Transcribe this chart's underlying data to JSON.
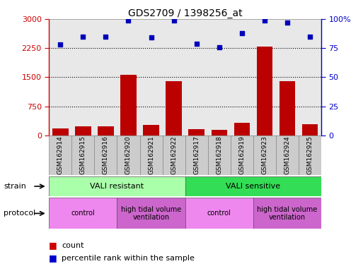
{
  "title": "GDS2709 / 1398256_at",
  "samples": [
    "GSM162914",
    "GSM162915",
    "GSM162916",
    "GSM162920",
    "GSM162921",
    "GSM162922",
    "GSM162917",
    "GSM162918",
    "GSM162919",
    "GSM162923",
    "GSM162924",
    "GSM162925"
  ],
  "counts": [
    175,
    230,
    245,
    1570,
    280,
    1390,
    170,
    140,
    320,
    2290,
    1390,
    295
  ],
  "percentile_ranks": [
    78,
    85,
    85,
    99,
    84,
    99,
    79,
    76,
    88,
    99,
    97,
    85
  ],
  "ylim_left": [
    0,
    3000
  ],
  "ylim_right": [
    0,
    100
  ],
  "yticks_left": [
    0,
    750,
    1500,
    2250,
    3000
  ],
  "yticks_right": [
    0,
    25,
    50,
    75,
    100
  ],
  "strain_groups": [
    {
      "label": "VALI resistant",
      "start": 0,
      "end": 6,
      "color": "#aaffaa"
    },
    {
      "label": "VALI sensitive",
      "start": 6,
      "end": 12,
      "color": "#33dd55"
    }
  ],
  "protocol_groups": [
    {
      "label": "control",
      "start": 0,
      "end": 3,
      "color": "#ee88ee"
    },
    {
      "label": "high tidal volume\nventilation",
      "start": 3,
      "end": 6,
      "color": "#cc66cc"
    },
    {
      "label": "control",
      "start": 6,
      "end": 9,
      "color": "#ee88ee"
    },
    {
      "label": "high tidal volume\nventilation",
      "start": 9,
      "end": 12,
      "color": "#cc66cc"
    }
  ],
  "bar_color": "#bb0000",
  "dot_color": "#0000bb",
  "grid_color": "#000000",
  "tick_color_left": "#cc0000",
  "tick_color_right": "#0000cc",
  "legend_count_color": "#cc0000",
  "legend_pct_color": "#0000cc",
  "bg_color": "#ffffff",
  "plot_bg": "#e8e8e8",
  "xticklabel_bg": "#cccccc"
}
